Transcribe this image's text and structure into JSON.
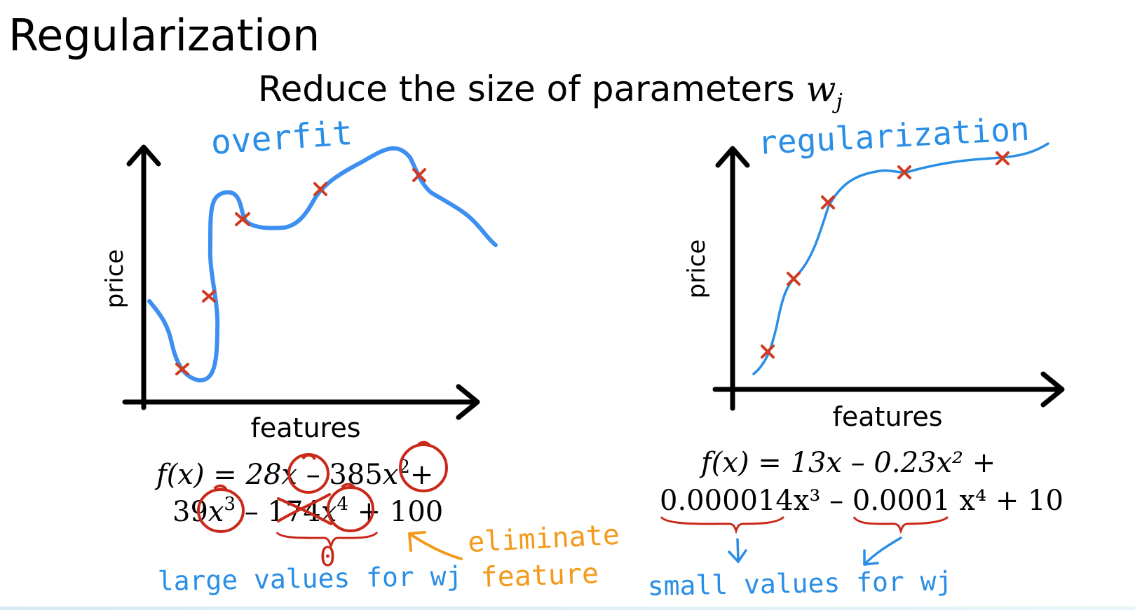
{
  "title": "Regularization",
  "subtitle": {
    "text": "Reduce the size of parameters",
    "var": "w",
    "sub": "j"
  },
  "left": {
    "annotation": "overfit",
    "ylabel": "price",
    "xlabel": "features",
    "eq_line1": {
      "a": "f(x) = 28",
      "b": "x",
      "c": " – 385",
      "d": "x",
      "e": "2",
      "f": "+"
    },
    "eq_line2": {
      "a": "39",
      "b": "x",
      "c": "3",
      "d": " – ",
      "e": "174",
      "f": "x",
      "g": "4",
      "h": " + 100"
    },
    "zero_note": "0",
    "bottom_note": "large values for wj",
    "eliminate_note_1": "eliminate",
    "eliminate_note_2": "feature"
  },
  "right": {
    "annotation": "regularization",
    "ylabel": "price",
    "xlabel": "features",
    "eq_line1": "f(x) = 13x – 0.23x² +",
    "eq_line2": "0.000014x³ – 0.0001 x⁴ + 10",
    "bottom_note": "small values for wj"
  },
  "colors": {
    "curve": "#3d8ff0",
    "marker": "#d03a20",
    "circle": "#c8291a",
    "annotation_blue": "#2a8ee6",
    "annotation_orange": "#f39a1c",
    "axis": "#000000"
  }
}
